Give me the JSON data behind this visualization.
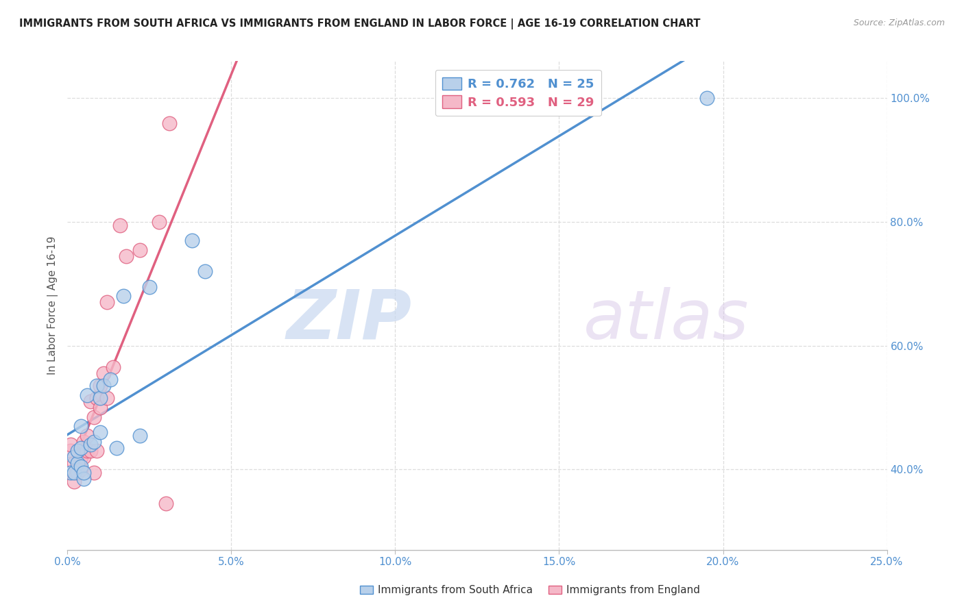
{
  "title": "IMMIGRANTS FROM SOUTH AFRICA VS IMMIGRANTS FROM ENGLAND IN LABOR FORCE | AGE 16-19 CORRELATION CHART",
  "source": "Source: ZipAtlas.com",
  "xlabel": "",
  "ylabel": "In Labor Force | Age 16-19",
  "legend_label_blue": "Immigrants from South Africa",
  "legend_label_pink": "Immigrants from England",
  "r_blue": 0.762,
  "n_blue": 25,
  "r_pink": 0.593,
  "n_pink": 29,
  "color_blue": "#b8d0ea",
  "color_pink": "#f5b8c8",
  "line_blue": "#5090d0",
  "line_pink": "#e06080",
  "line_diag": "#cccccc",
  "xlim": [
    0.0,
    0.25
  ],
  "ylim": [
    0.27,
    1.06
  ],
  "xticks": [
    0.0,
    0.05,
    0.1,
    0.15,
    0.2,
    0.25
  ],
  "yticks": [
    0.4,
    0.6,
    0.8,
    1.0
  ],
  "ytick_labels": [
    "40.0%",
    "60.0%",
    "80.0%",
    "100.0%"
  ],
  "xtick_labels": [
    "0.0%",
    "5.0%",
    "10.0%",
    "15.0%",
    "20.0%",
    "25.0%"
  ],
  "right_ytick_color": "#5090d0",
  "bottom_xtick_color": "#5090d0",
  "blue_x": [
    0.001,
    0.002,
    0.002,
    0.003,
    0.003,
    0.004,
    0.004,
    0.004,
    0.005,
    0.005,
    0.006,
    0.007,
    0.008,
    0.009,
    0.01,
    0.01,
    0.011,
    0.013,
    0.015,
    0.017,
    0.022,
    0.025,
    0.038,
    0.042,
    0.195
  ],
  "blue_y": [
    0.395,
    0.395,
    0.42,
    0.41,
    0.43,
    0.405,
    0.435,
    0.47,
    0.385,
    0.395,
    0.52,
    0.44,
    0.445,
    0.535,
    0.515,
    0.46,
    0.535,
    0.545,
    0.435,
    0.68,
    0.455,
    0.695,
    0.77,
    0.72,
    1.0
  ],
  "pink_x": [
    0.001,
    0.001,
    0.002,
    0.002,
    0.003,
    0.004,
    0.004,
    0.005,
    0.005,
    0.006,
    0.006,
    0.007,
    0.007,
    0.008,
    0.008,
    0.009,
    0.009,
    0.01,
    0.01,
    0.011,
    0.012,
    0.012,
    0.014,
    0.016,
    0.018,
    0.022,
    0.028,
    0.03,
    0.031
  ],
  "pink_y": [
    0.43,
    0.44,
    0.38,
    0.41,
    0.395,
    0.4,
    0.42,
    0.42,
    0.445,
    0.43,
    0.455,
    0.43,
    0.51,
    0.395,
    0.485,
    0.43,
    0.515,
    0.5,
    0.535,
    0.555,
    0.67,
    0.515,
    0.565,
    0.795,
    0.745,
    0.755,
    0.8,
    0.345,
    0.96
  ],
  "watermark_zip": "ZIP",
  "watermark_atlas": "atlas",
  "background_color": "#ffffff",
  "grid_color": "#dddddd"
}
